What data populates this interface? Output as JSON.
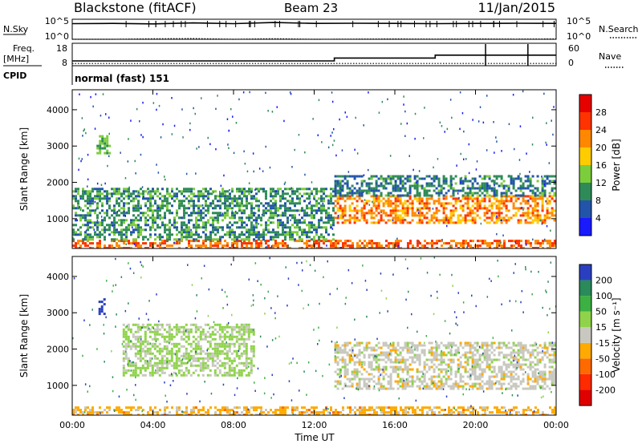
{
  "header": {
    "radar": "Blackstone (fitACF)",
    "beam": "Beam 23",
    "date": "11/Jan/2015"
  },
  "status_panel": {
    "nsky_label": "N.Sky",
    "nsky_top_tick": "10^5",
    "nsky_bottom_tick": "10^0",
    "nsearch_label": "N.Search",
    "nsearch_top_tick": "10^5",
    "nsearch_bottom_tick": "10^0",
    "freq_label": "Freq.",
    "freq_unit": "[MHz]",
    "freq_ticks": [
      "18",
      "8"
    ],
    "nave_label": "Nave",
    "nave_ticks": [
      "60",
      "0"
    ],
    "cpid_label": "CPID",
    "cpid_text": "normal (fast) 151"
  },
  "x_axis": {
    "label": "Time UT",
    "ticks": [
      "00:00",
      "04:00",
      "08:00",
      "12:00",
      "16:00",
      "20:00",
      "00:00"
    ]
  },
  "colorbars": {
    "power": {
      "label": "Power [dB]",
      "ticks": [
        "4",
        "8",
        "12",
        "16",
        "20",
        "24",
        "28"
      ],
      "colors": [
        "#1a1aff",
        "#2255aa",
        "#2e8b57",
        "#7ccd3c",
        "#ffcc00",
        "#ff8800",
        "#ff3300",
        "#e60000"
      ]
    },
    "velocity": {
      "label": "Velocity [m s⁻¹]",
      "ticks": [
        "200",
        "100",
        "50",
        "15",
        "-15",
        "-50",
        "-100",
        "-200"
      ],
      "colors": [
        "#2a3fbf",
        "#2a8a5a",
        "#3cb043",
        "#8fd34a",
        "#c8c8c0",
        "#ffaa00",
        "#ff6a00",
        "#ff2a00",
        "#e00000"
      ]
    }
  },
  "chart_data": [
    {
      "type": "line",
      "panel": "status",
      "x_unit": "hours UT",
      "xlim": [
        0,
        24
      ],
      "series": [
        {
          "name": "N.Sky",
          "x": [
            0,
            2,
            4,
            6,
            8,
            10,
            12,
            14,
            16,
            18,
            20,
            22,
            24
          ],
          "values": [
            8000,
            9000,
            7000,
            12000,
            8000,
            15000,
            9000,
            10000,
            9000,
            8000,
            9000,
            10000,
            9000
          ]
        },
        {
          "name": "N.Search",
          "x": [
            0,
            2,
            4,
            6,
            8,
            10,
            12,
            14,
            16,
            18,
            20,
            22,
            24
          ],
          "values": [
            1,
            1,
            1.3,
            1.5,
            1,
            1.4,
            1,
            1.1,
            1.2,
            1.1,
            1.2,
            1.1,
            1.2
          ]
        },
        {
          "name": "Freq.",
          "unit": "MHz",
          "x": [
            0,
            13,
            13,
            18,
            18,
            24
          ],
          "values": [
            10.5,
            10.5,
            12,
            12,
            13.5,
            13.5
          ]
        },
        {
          "name": "Nave",
          "x": [
            0,
            24
          ],
          "values": [
            7,
            7
          ]
        }
      ]
    },
    {
      "type": "heatmap",
      "panel": "power",
      "xlabel": "Time UT",
      "ylabel": "Slant Range [km]",
      "xlim": [
        0,
        24
      ],
      "ylim": [
        180,
        4550
      ],
      "yticks": [
        1000,
        2000,
        3000,
        4000
      ],
      "colorbar": {
        "label": "Power [dB]",
        "range": [
          0,
          32
        ]
      },
      "features": [
        {
          "t0": 0,
          "t1": 24,
          "r0": 180,
          "r1": 420,
          "value": 24
        },
        {
          "t0": 0,
          "t1": 13,
          "r0": 420,
          "r1": 1850,
          "value": 10
        },
        {
          "t0": 13,
          "t1": 24,
          "r0": 900,
          "r1": 1650,
          "value": 22
        },
        {
          "t0": 13,
          "t1": 24,
          "r0": 1650,
          "r1": 2200,
          "value": 9
        },
        {
          "t0": 1.2,
          "t1": 1.8,
          "r0": 2800,
          "r1": 3300,
          "value": 12
        }
      ]
    },
    {
      "type": "heatmap",
      "panel": "velocity",
      "xlabel": "Time UT",
      "ylabel": "Slant Range [km]",
      "xlim": [
        0,
        24
      ],
      "ylim": [
        180,
        4550
      ],
      "yticks": [
        1000,
        2000,
        3000,
        4000
      ],
      "colorbar": {
        "label": "Velocity [m s⁻¹]",
        "range": [
          -200,
          200
        ]
      },
      "features": [
        {
          "t0": 0,
          "t1": 24,
          "r0": 180,
          "r1": 420,
          "value": 40
        },
        {
          "t0": 2.5,
          "t1": 9,
          "r0": 1300,
          "r1": 2700,
          "value": -30
        },
        {
          "t0": 13,
          "t1": 24,
          "r0": 900,
          "r1": 2200,
          "value": 0
        },
        {
          "t0": 1.3,
          "t1": 1.6,
          "r0": 3000,
          "r1": 3400,
          "value": -200
        }
      ]
    }
  ]
}
